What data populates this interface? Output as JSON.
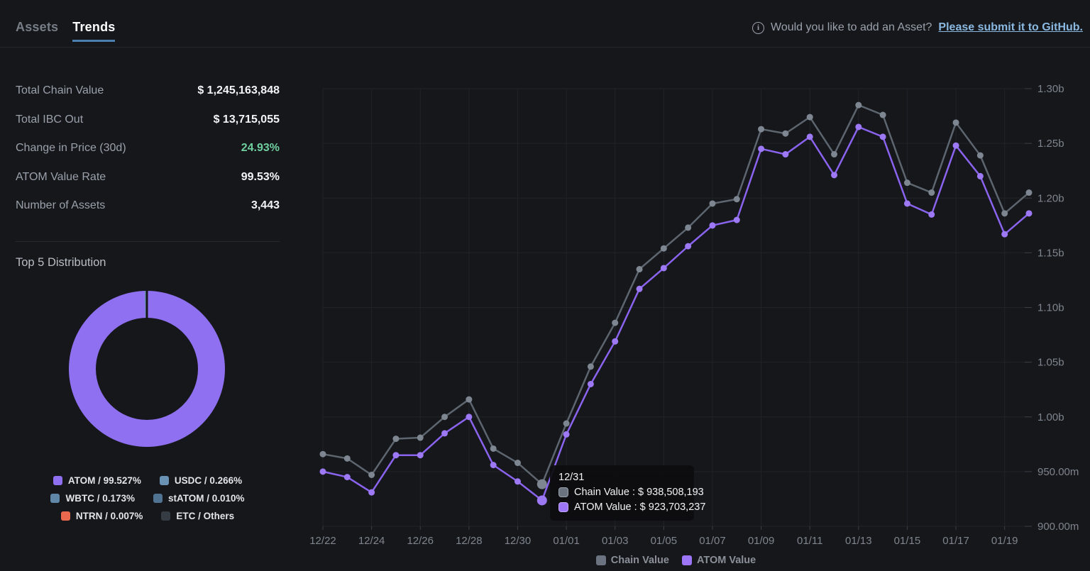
{
  "header": {
    "tabs": [
      {
        "name": "assets",
        "label": "Assets",
        "active": false
      },
      {
        "name": "trends",
        "label": "Trends",
        "active": true
      }
    ],
    "info_text": "Would you like to add an Asset?",
    "info_link": "Please submit it to GitHub.",
    "info_icon": "info-circle-icon"
  },
  "stats": {
    "rows": [
      {
        "label": "Total Chain Value",
        "value": "$ 1,245,163,848",
        "color": "white"
      },
      {
        "label": "Total IBC Out",
        "value": "$ 13,715,055",
        "color": "white"
      },
      {
        "label": "Change in Price (30d)",
        "value": "24.93%",
        "color": "green"
      },
      {
        "label": "ATOM Value Rate",
        "value": "99.53%",
        "color": "white"
      },
      {
        "label": "Number of Assets",
        "value": "3,443",
        "color": "white"
      }
    ]
  },
  "distribution": {
    "title": "Top 5 Distribution",
    "segments": [
      {
        "label": "ATOM / 99.527%",
        "name": "ATOM",
        "percent": 99.527,
        "color": "#8f70f1"
      },
      {
        "label": "USDC / 0.266%",
        "name": "USDC",
        "percent": 0.266,
        "color": "#6a92b5"
      },
      {
        "label": "WBTC / 0.173%",
        "name": "WBTC",
        "percent": 0.173,
        "color": "#5f87a8"
      },
      {
        "label": "stATOM / 0.010%",
        "name": "stATOM",
        "percent": 0.01,
        "color": "#4f7391"
      },
      {
        "label": "NTRN / 0.007%",
        "name": "NTRN",
        "percent": 0.007,
        "color": "#e8694e"
      },
      {
        "label": "ETC / Others",
        "name": "ETC",
        "percent": 0.017,
        "color": "#363c44"
      }
    ]
  },
  "chart_data": {
    "type": "line",
    "unit": "USD millions",
    "x": [
      "12/22",
      "12/23",
      "12/24",
      "12/25",
      "12/26",
      "12/27",
      "12/28",
      "12/29",
      "12/30",
      "12/31",
      "01/01",
      "01/02",
      "01/03",
      "01/04",
      "01/05",
      "01/06",
      "01/07",
      "01/08",
      "01/09",
      "01/10",
      "01/11",
      "01/12",
      "01/13",
      "01/14",
      "01/15",
      "01/16",
      "01/17",
      "01/18",
      "01/19",
      "01/20"
    ],
    "x_tick_every": 2,
    "grid": true,
    "ylim": [
      900,
      1300
    ],
    "y_ticks": [
      {
        "value": 1300,
        "label": "1.30b"
      },
      {
        "value": 1250,
        "label": "1.25b"
      },
      {
        "value": 1200,
        "label": "1.20b"
      },
      {
        "value": 1150,
        "label": "1.15b"
      },
      {
        "value": 1100,
        "label": "1.10b"
      },
      {
        "value": 1050,
        "label": "1.05b"
      },
      {
        "value": 1000,
        "label": "1.00b"
      },
      {
        "value": 950,
        "label": "950.00m"
      },
      {
        "value": 900,
        "label": "900.00m"
      }
    ],
    "series": [
      {
        "name": "Chain Value",
        "line_color": "#5d656f",
        "point_color": "#7d8691",
        "values": [
          966,
          962,
          947,
          980,
          981,
          1000,
          1016,
          971,
          958,
          938.5,
          994,
          1046,
          1086,
          1135,
          1154,
          1173,
          1195,
          1199,
          1263,
          1259,
          1274,
          1240,
          1285,
          1276,
          1214,
          1205,
          1269,
          1239,
          1186,
          1205
        ]
      },
      {
        "name": "ATOM Value",
        "line_color": "#8a63ee",
        "point_color": "#9e79f6",
        "values": [
          950,
          945,
          931,
          965,
          965,
          985,
          1000,
          956,
          941,
          923.7,
          984,
          1030,
          1069,
          1117,
          1136,
          1156,
          1175,
          1180,
          1245,
          1240,
          1256,
          1221,
          1265,
          1256,
          1195,
          1185,
          1248,
          1220,
          1167,
          1186
        ]
      }
    ],
    "legend_position": "bottom",
    "legend": [
      {
        "label": "Chain Value",
        "color": "#6b7280"
      },
      {
        "label": "ATOM Value",
        "color": "#9d75f7"
      }
    ],
    "tooltip": {
      "date": "12/31",
      "index": 9,
      "rows": [
        {
          "label": "Chain Value",
          "value": "$ 938,508,193",
          "swatch": "#6b7280",
          "swatch_border": "#9aa3ad"
        },
        {
          "label": "ATOM Value",
          "value": "$ 923,703,237",
          "swatch": "#9d75f7",
          "swatch_border": "#c3a8fb"
        }
      ]
    }
  }
}
